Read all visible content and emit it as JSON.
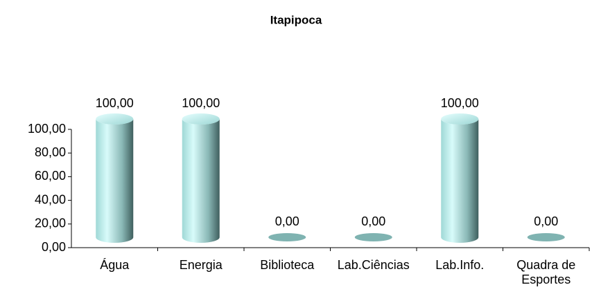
{
  "chart_data": {
    "type": "bar",
    "title": "Itapipoca",
    "categories": [
      "Água",
      "Energia",
      "Biblioteca",
      "Lab.Ciências",
      "Lab.Info.",
      "Quadra de Esportes"
    ],
    "values": [
      100,
      100,
      0,
      0,
      100,
      0
    ],
    "value_labels": [
      "100,00",
      "100,00",
      "0,00",
      "0,00",
      "100,00",
      "0,00"
    ],
    "color": "#8fd4d0",
    "ylim": [
      0,
      100
    ],
    "yticks": [
      {
        "value": 0,
        "label": "0,00"
      },
      {
        "value": 20,
        "label": "20,00"
      },
      {
        "value": 40,
        "label": "40,00"
      },
      {
        "value": 60,
        "label": "60,00"
      },
      {
        "value": 80,
        "label": "80,00"
      },
      {
        "value": 100,
        "label": "100,00"
      }
    ],
    "grid": false
  }
}
